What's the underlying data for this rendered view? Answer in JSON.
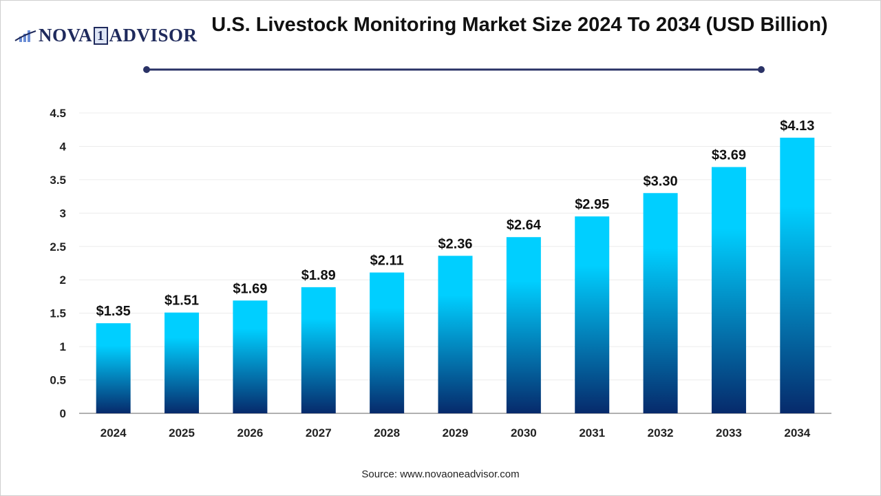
{
  "logo": {
    "text_left": "NOVA",
    "text_mid": "1",
    "text_right": "ADVISOR"
  },
  "source": "Source: www.novaoneadvisor.com",
  "colors": {
    "bar_top": "#00cfff",
    "bar_bottom": "#062a6b",
    "title_rule": "#2a3266"
  },
  "chart_data": {
    "type": "bar",
    "title": "U.S. Livestock Monitoring Market Size 2024 To 2034 (USD Billion)",
    "categories": [
      "2024",
      "2025",
      "2026",
      "2027",
      "2028",
      "2029",
      "2030",
      "2031",
      "2032",
      "2033",
      "2034"
    ],
    "values": [
      1.35,
      1.51,
      1.69,
      1.89,
      2.11,
      2.36,
      2.64,
      2.95,
      3.3,
      3.69,
      4.13
    ],
    "data_labels": [
      "$1.35",
      "$1.51",
      "$1.69",
      "$1.89",
      "$2.11",
      "$2.36",
      "$2.64",
      "$2.95",
      "$3.30",
      "$3.69",
      "$4.13"
    ],
    "yticks": [
      "0",
      "0.5",
      "1",
      "1.5",
      "2",
      "2.5",
      "3",
      "3.5",
      "4",
      "4.5"
    ],
    "ylim": [
      0,
      4.5
    ],
    "xlabel": "",
    "ylabel": "",
    "grid": true,
    "legend": "none"
  }
}
